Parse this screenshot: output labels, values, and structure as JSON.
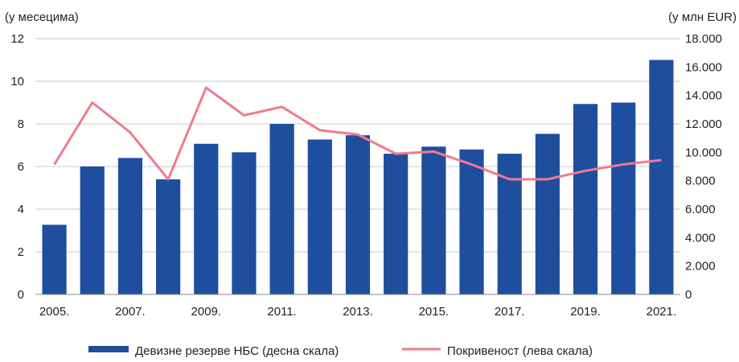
{
  "chart_data": {
    "type": "bar+line",
    "left_axis_unit": "(у месецима)",
    "right_axis_unit": "(у млн EUR)",
    "left_axis": {
      "min": 0,
      "max": 12,
      "ticks": [
        "0",
        "2",
        "4",
        "6",
        "8",
        "10",
        "12"
      ]
    },
    "right_axis": {
      "min": 0,
      "max": 18000,
      "ticks": [
        "0",
        "2.000",
        "4.000",
        "6.000",
        "8.000",
        "10.000",
        "12.000",
        "14.000",
        "16.000",
        "18.000"
      ]
    },
    "categories": [
      "2005",
      "2006",
      "2007",
      "2008",
      "2009",
      "2010",
      "2011",
      "2012",
      "2013",
      "2014",
      "2015",
      "2016",
      "2017",
      "2018",
      "2019",
      "2020",
      "2021"
    ],
    "x_tick_labels": [
      "2005.",
      "",
      "2007.",
      "",
      "2009.",
      "",
      "2011.",
      "",
      "2013.",
      "",
      "2015.",
      "",
      "2017.",
      "",
      "2019.",
      "",
      "2021."
    ],
    "series": [
      {
        "name": "Девизне резерве НБС (десна скала)",
        "type": "bar",
        "axis": "right",
        "color": "#1f4e9e",
        "values": [
          4900,
          9000,
          9600,
          8100,
          10600,
          10000,
          12000,
          10900,
          11200,
          9900,
          10400,
          10200,
          9900,
          11300,
          13400,
          13500,
          16500
        ]
      },
      {
        "name": "Покривеност (лева скала)",
        "type": "line",
        "axis": "left",
        "color": "#f07a8e",
        "values": [
          6.1,
          9.0,
          7.6,
          5.4,
          9.7,
          8.4,
          8.8,
          7.7,
          7.5,
          6.6,
          6.7,
          6.1,
          5.4,
          5.4,
          5.8,
          6.1,
          6.3
        ]
      }
    ],
    "grid": true,
    "legend_position": "bottom"
  }
}
